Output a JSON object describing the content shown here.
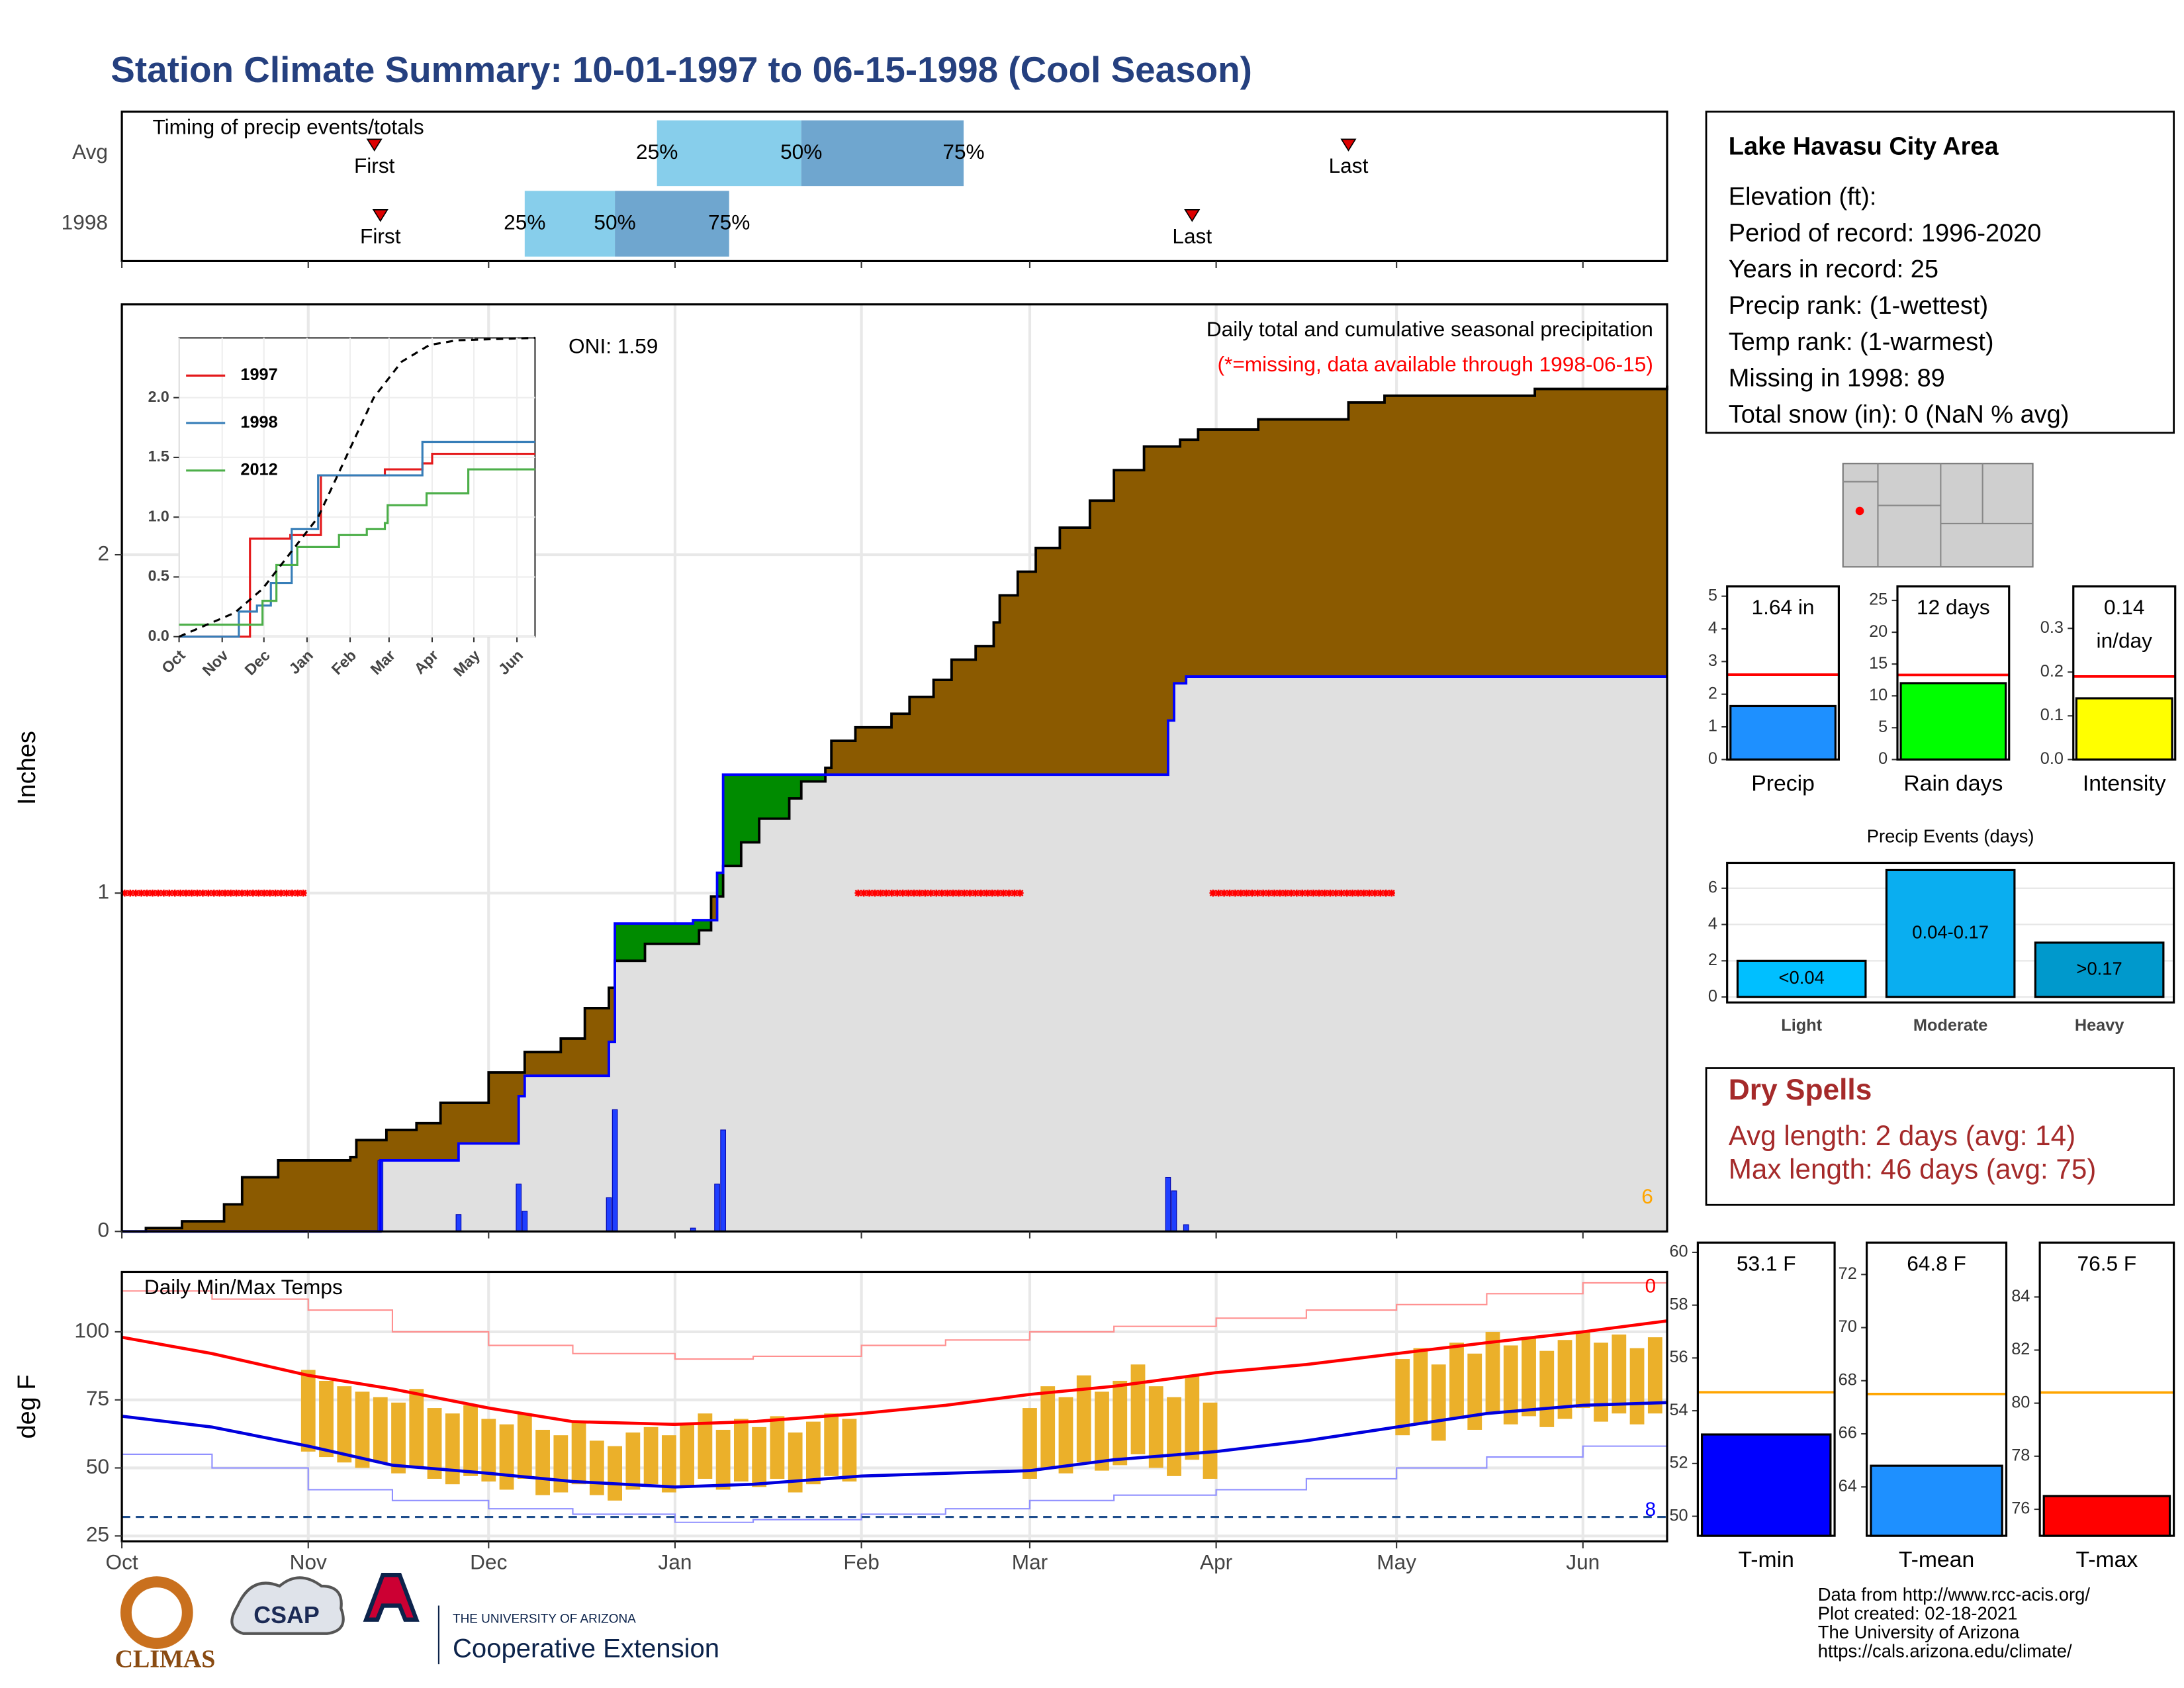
{
  "title": "Station Climate Summary: 10-01-1997 to 06-15-1998 (Cool Season)",
  "info": {
    "title": "Lake Havasu City Area",
    "lines": [
      "Elevation (ft):",
      "Period of record: 1996-2020",
      "Years in record: 25",
      "Precip rank:  (1-wettest)",
      "Temp rank:  (1-warmest)",
      "Missing in 1998: 89",
      "Total snow (in): 0 (NaN % avg)"
    ]
  },
  "dry_spells": {
    "title": "Dry Spells",
    "lines": [
      "Avg length: 2 days (avg: 14)",
      "Max length: 46 days (avg: 75)"
    ]
  },
  "footer": [
    "Data from http://www.rcc-acis.org/",
    "Plot created: 02-18-2021",
    "The University of Arizona",
    "https://cals.arizona.edu/climate/"
  ],
  "logos": [
    "CLIMAS",
    "CSAP",
    "THE UNIVERSITY OF ARIZONA",
    "Cooperative Extension"
  ],
  "chart_data": [
    {
      "type": "timeline",
      "title": "Timing of precip events/totals",
      "categories": [
        "Avg",
        "1998"
      ],
      "labels": [
        "First",
        "25%",
        "50%",
        "75%",
        "Last"
      ],
      "series": [
        {
          "values": [
            42,
            89,
            113,
            140,
            204
          ]
        },
        {
          "values": [
            43,
            67,
            82,
            101,
            178
          ]
        }
      ],
      "colors": [
        "#87ceeb",
        "#6fa6cf",
        "#dd0000"
      ],
      "xlim": [
        0,
        257
      ],
      "xticks": [
        0,
        31,
        61,
        92,
        123,
        151,
        182,
        212,
        243
      ]
    },
    {
      "type": "area",
      "y_label": "Inches",
      "annotations": [
        {
          "text": "ONI: 1.59",
          "color": "#000000"
        },
        {
          "text": "Daily total and cumulative seasonal precipitation",
          "color": "#000000"
        },
        {
          "text": "(*=missing, data available through 1998-06-15)",
          "color": "#ff0000"
        },
        {
          "text": "6",
          "color": "#ffa500"
        }
      ],
      "xlim": [
        0,
        257
      ],
      "xticks": [
        0,
        31,
        61,
        92,
        123,
        151,
        182,
        212,
        243
      ],
      "ylim": [
        0,
        2.74
      ],
      "yticks": [
        0,
        1,
        2
      ],
      "grid": true,
      "overlap_color": "#e0e0e0",
      "series": [
        {
          "color": "#000000",
          "fill": "#8b5a00",
          "x": [
            0,
            4,
            10,
            17,
            20,
            26,
            38,
            39,
            44,
            49,
            53,
            61,
            67,
            73,
            77,
            81,
            82,
            87,
            96,
            98,
            100,
            103,
            106,
            111,
            113,
            117,
            118,
            122,
            128,
            131,
            135,
            138,
            142,
            145,
            146,
            149,
            152,
            156,
            161,
            165,
            170,
            176,
            179,
            189,
            204,
            210,
            235,
            257
          ],
          "values": [
            0,
            0.01,
            0.03,
            0.08,
            0.16,
            0.21,
            0.22,
            0.27,
            0.3,
            0.32,
            0.38,
            0.47,
            0.53,
            0.57,
            0.66,
            0.72,
            0.8,
            0.85,
            0.89,
            0.99,
            1.08,
            1.15,
            1.22,
            1.28,
            1.33,
            1.37,
            1.45,
            1.49,
            1.53,
            1.58,
            1.63,
            1.69,
            1.73,
            1.8,
            1.88,
            1.95,
            2.02,
            2.08,
            2.16,
            2.25,
            2.32,
            2.34,
            2.37,
            2.4,
            2.45,
            2.47,
            2.49,
            2.5
          ]
        },
        {
          "color": "#0000ff",
          "fill": "#008b00",
          "x": [
            0,
            43,
            56,
            66,
            67,
            81,
            82,
            95,
            99,
            100,
            174,
            175,
            177,
            257
          ],
          "values": [
            0,
            0.21,
            0.26,
            0.4,
            0.46,
            0.56,
            0.91,
            0.92,
            1.06,
            1.35,
            1.51,
            1.62,
            1.64,
            1.64
          ]
        }
      ],
      "bars": {
        "color": "#1f3fff",
        "x": [
          43,
          56,
          66,
          67,
          81,
          82,
          95,
          99,
          100,
          174,
          175,
          177
        ],
        "values": [
          0.21,
          0.05,
          0.14,
          0.06,
          0.1,
          0.36,
          0.01,
          0.14,
          0.3,
          0.16,
          0.12,
          0.02
        ]
      },
      "missing": {
        "color": "#ff0000",
        "y": 1,
        "ranges": [
          [
            0,
            31
          ],
          [
            122,
            150
          ],
          [
            181,
            212
          ]
        ]
      }
    },
    {
      "type": "line",
      "xlim": [
        0,
        256
      ],
      "xticks": [
        {
          "value": 0,
          "label": "Oct"
        },
        {
          "value": 31,
          "label": "Nov"
        },
        {
          "value": 61,
          "label": "Dec"
        },
        {
          "value": 92,
          "label": "Jan"
        },
        {
          "value": 123,
          "label": "Feb"
        },
        {
          "value": 151,
          "label": "Mar"
        },
        {
          "value": 182,
          "label": "Apr"
        },
        {
          "value": 212,
          "label": "May"
        },
        {
          "value": 243,
          "label": "Jun"
        }
      ],
      "ylim": [
        0,
        2.5
      ],
      "yticks": [
        {
          "value": 0,
          "label": "0.0"
        },
        0.5,
        {
          "value": 1,
          "label": "1.0"
        },
        1.5,
        {
          "value": 2,
          "label": "2.0"
        }
      ],
      "grid": true,
      "legend": "top-left",
      "series": [
        {
          "name": "1997",
          "color": "#e41a1c",
          "x": [
            0,
            50,
            51,
            80,
            102,
            148,
            175,
            182,
            256
          ],
          "values": [
            0,
            0,
            0.82,
            0.85,
            1.35,
            1.4,
            1.45,
            1.53,
            1.53
          ]
        },
        {
          "name": "1998",
          "color": "#377eb8",
          "x": [
            0,
            43,
            56,
            66,
            81,
            100,
            174,
            175,
            256
          ],
          "values": [
            0,
            0.21,
            0.26,
            0.45,
            0.9,
            1.35,
            1.35,
            1.63,
            1.63
          ]
        },
        {
          "name": "2012",
          "color": "#4daf4a",
          "x": [
            0,
            50,
            60,
            70,
            85,
            112,
            115,
            135,
            148,
            150,
            175,
            178,
            205,
            208,
            256
          ],
          "values": [
            0.1,
            0.1,
            0.3,
            0.6,
            0.75,
            0.75,
            0.85,
            0.9,
            0.95,
            1.1,
            1.1,
            1.2,
            1.2,
            1.4,
            1.4
          ]
        },
        {
          "color": "#000000",
          "dash": true,
          "x": [
            0,
            20,
            40,
            60,
            80,
            100,
            120,
            140,
            160,
            180,
            200,
            256
          ],
          "values": [
            0,
            0.1,
            0.2,
            0.4,
            0.7,
            1.0,
            1.5,
            2.0,
            2.3,
            2.44,
            2.48,
            2.5
          ]
        }
      ]
    },
    {
      "type": "temps",
      "title": "Daily Min/Max Temps",
      "y_label": "deg F",
      "annotations": [
        {
          "text": "0",
          "color": "#ff0000"
        },
        {
          "text": "8",
          "color": "#0000ff"
        }
      ],
      "xlim": [
        0,
        257
      ],
      "xticks": [
        {
          "value": 0,
          "label": "Oct"
        },
        {
          "value": 31,
          "label": "Nov"
        },
        {
          "value": 61,
          "label": "Dec"
        },
        {
          "value": 92,
          "label": "Jan"
        },
        {
          "value": 123,
          "label": "Feb"
        },
        {
          "value": 151,
          "label": "Mar"
        },
        {
          "value": 182,
          "label": "Apr"
        },
        {
          "value": 212,
          "label": "May"
        },
        {
          "value": 243,
          "label": "Jun"
        }
      ],
      "ylim": [
        23,
        122
      ],
      "yticks": [
        25,
        50,
        75,
        100
      ],
      "grid": true,
      "freeze": {
        "value": 32,
        "color": "#1f4e8c"
      },
      "daily": {
        "color": "#ebb02a",
        "x": [
          31,
          34,
          37,
          40,
          43,
          46,
          49,
          52,
          55,
          58,
          61,
          64,
          67,
          70,
          73,
          76,
          79,
          82,
          85,
          88,
          91,
          94,
          97,
          100,
          103,
          106,
          109,
          112,
          115,
          118,
          121,
          151,
          154,
          157,
          160,
          163,
          166,
          169,
          172,
          175,
          178,
          181,
          213,
          216,
          219,
          222,
          225,
          228,
          231,
          234,
          237,
          240,
          243,
          246,
          249,
          252,
          255
        ],
        "tmax": [
          86,
          82,
          80,
          78,
          76,
          74,
          79,
          72,
          70,
          73,
          68,
          66,
          70,
          64,
          62,
          67,
          60,
          58,
          63,
          65,
          62,
          66,
          70,
          64,
          68,
          65,
          69,
          63,
          67,
          70,
          68,
          72,
          80,
          76,
          84,
          78,
          82,
          88,
          80,
          76,
          84,
          74,
          90,
          94,
          88,
          96,
          92,
          100,
          95,
          98,
          93,
          97,
          100,
          96,
          99,
          94,
          98
        ],
        "tmin": [
          56,
          54,
          52,
          50,
          52,
          48,
          50,
          46,
          44,
          47,
          45,
          42,
          46,
          40,
          41,
          44,
          40,
          38,
          42,
          44,
          41,
          43,
          46,
          42,
          45,
          43,
          46,
          41,
          44,
          47,
          45,
          46,
          50,
          48,
          52,
          49,
          51,
          55,
          50,
          47,
          53,
          46,
          62,
          66,
          60,
          68,
          64,
          70,
          66,
          69,
          65,
          68,
          72,
          67,
          70,
          66,
          70
        ]
      },
      "lines": [
        {
          "color": "#ff9090",
          "width": 1,
          "x": [
            0,
            15,
            31,
            45,
            61,
            75,
            92,
            105,
            123,
            137,
            151,
            165,
            182,
            197,
            212,
            227,
            243,
            257
          ],
          "values": [
            115,
            112,
            108,
            100,
            95,
            92,
            90,
            91,
            95,
            97,
            100,
            102,
            105,
            108,
            110,
            114,
            118,
            118
          ]
        },
        {
          "color": "#9090ff",
          "width": 1,
          "x": [
            0,
            15,
            31,
            45,
            61,
            75,
            92,
            105,
            123,
            137,
            151,
            165,
            182,
            197,
            212,
            227,
            243,
            257
          ],
          "values": [
            55,
            50,
            42,
            38,
            35,
            33,
            30,
            31,
            33,
            35,
            38,
            40,
            42,
            46,
            50,
            54,
            58,
            62
          ]
        },
        {
          "color": "#ff0000",
          "width": 2.2,
          "x": [
            0,
            15,
            31,
            45,
            61,
            75,
            92,
            105,
            123,
            137,
            151,
            165,
            182,
            197,
            212,
            227,
            243,
            257
          ],
          "values": [
            98,
            92,
            84,
            79,
            72,
            67,
            66,
            67,
            70,
            73,
            77,
            80,
            85,
            88,
            92,
            96,
            100,
            104
          ]
        },
        {
          "color": "#0000dd",
          "width": 2.2,
          "x": [
            0,
            15,
            31,
            45,
            61,
            75,
            92,
            105,
            123,
            137,
            151,
            165,
            182,
            197,
            212,
            227,
            243,
            257
          ],
          "values": [
            69,
            65,
            58,
            51,
            48,
            45,
            43,
            44,
            47,
            48,
            49,
            53,
            56,
            60,
            65,
            70,
            73,
            74
          ]
        }
      ]
    },
    {
      "type": "bar",
      "categories": [
        "Precip"
      ],
      "values": [
        1.64
      ],
      "value_labels": [
        [
          "1.64 in"
        ]
      ],
      "colors": [
        "#1e90ff"
      ],
      "reference": 2.6,
      "reference_color": "#ff0000",
      "ylim": [
        0,
        5.3
      ],
      "yticks": [
        0,
        1,
        2,
        3,
        4,
        5
      ]
    },
    {
      "type": "bar",
      "categories": [
        "Rain days"
      ],
      "values": [
        12
      ],
      "value_labels": [
        [
          "12 days"
        ]
      ],
      "colors": [
        "#00ff00"
      ],
      "reference": 13.3,
      "reference_color": "#ff0000",
      "ylim": [
        0,
        27.2
      ],
      "yticks": [
        0,
        5,
        10,
        15,
        20,
        25
      ]
    },
    {
      "type": "bar",
      "categories": [
        "Intensity"
      ],
      "values": [
        0.14
      ],
      "value_labels": [
        [
          "0.14",
          "in/day"
        ]
      ],
      "colors": [
        "#ffff00"
      ],
      "reference": 0.19,
      "reference_color": "#ff0000",
      "ylim": [
        0,
        0.396
      ],
      "yticks": [
        {
          "value": 0,
          "label": "0.0"
        },
        0.1,
        0.2,
        0.3
      ]
    },
    {
      "type": "bar",
      "title": "Precip Events (days)",
      "categories": [
        "Light",
        "Moderate",
        "Heavy"
      ],
      "values": [
        2,
        7,
        3
      ],
      "value_labels": [
        [
          "<0.04"
        ],
        [
          "0.04-0.17"
        ],
        [
          ">0.17"
        ]
      ],
      "colors": [
        "#00bfff",
        "#0aaef0",
        "#0099cc"
      ],
      "grid": true,
      "ylim": [
        -0.3,
        7.4
      ],
      "yticks": [
        0,
        2,
        4,
        6
      ]
    },
    {
      "type": "bar",
      "categories": [
        "T-min"
      ],
      "values": [
        53.1
      ],
      "value_labels": [
        [
          "53.1 F"
        ]
      ],
      "colors": [
        "#0000ff"
      ],
      "reference": 54.7,
      "reference_color": "#ffa500",
      "ylim": [
        49.26,
        60.37
      ],
      "yticks": [
        50,
        52,
        54,
        56,
        58,
        60
      ]
    },
    {
      "type": "bar",
      "categories": [
        "T-mean"
      ],
      "values": [
        64.8
      ],
      "value_labels": [
        [
          "64.8 F"
        ]
      ],
      "colors": [
        "#1e90ff"
      ],
      "reference": 67.5,
      "reference_color": "#ffa500",
      "ylim": [
        62.16,
        73.2
      ],
      "yticks": [
        64,
        66,
        68,
        70,
        72
      ]
    },
    {
      "type": "bar",
      "categories": [
        "T-max"
      ],
      "values": [
        76.5
      ],
      "value_labels": [
        [
          "76.5 F"
        ]
      ],
      "colors": [
        "#ff0000"
      ],
      "reference": 80.4,
      "reference_color": "#ffa500",
      "ylim": [
        75.0,
        86.05
      ],
      "yticks": [
        76,
        78,
        80,
        82,
        84
      ]
    }
  ]
}
